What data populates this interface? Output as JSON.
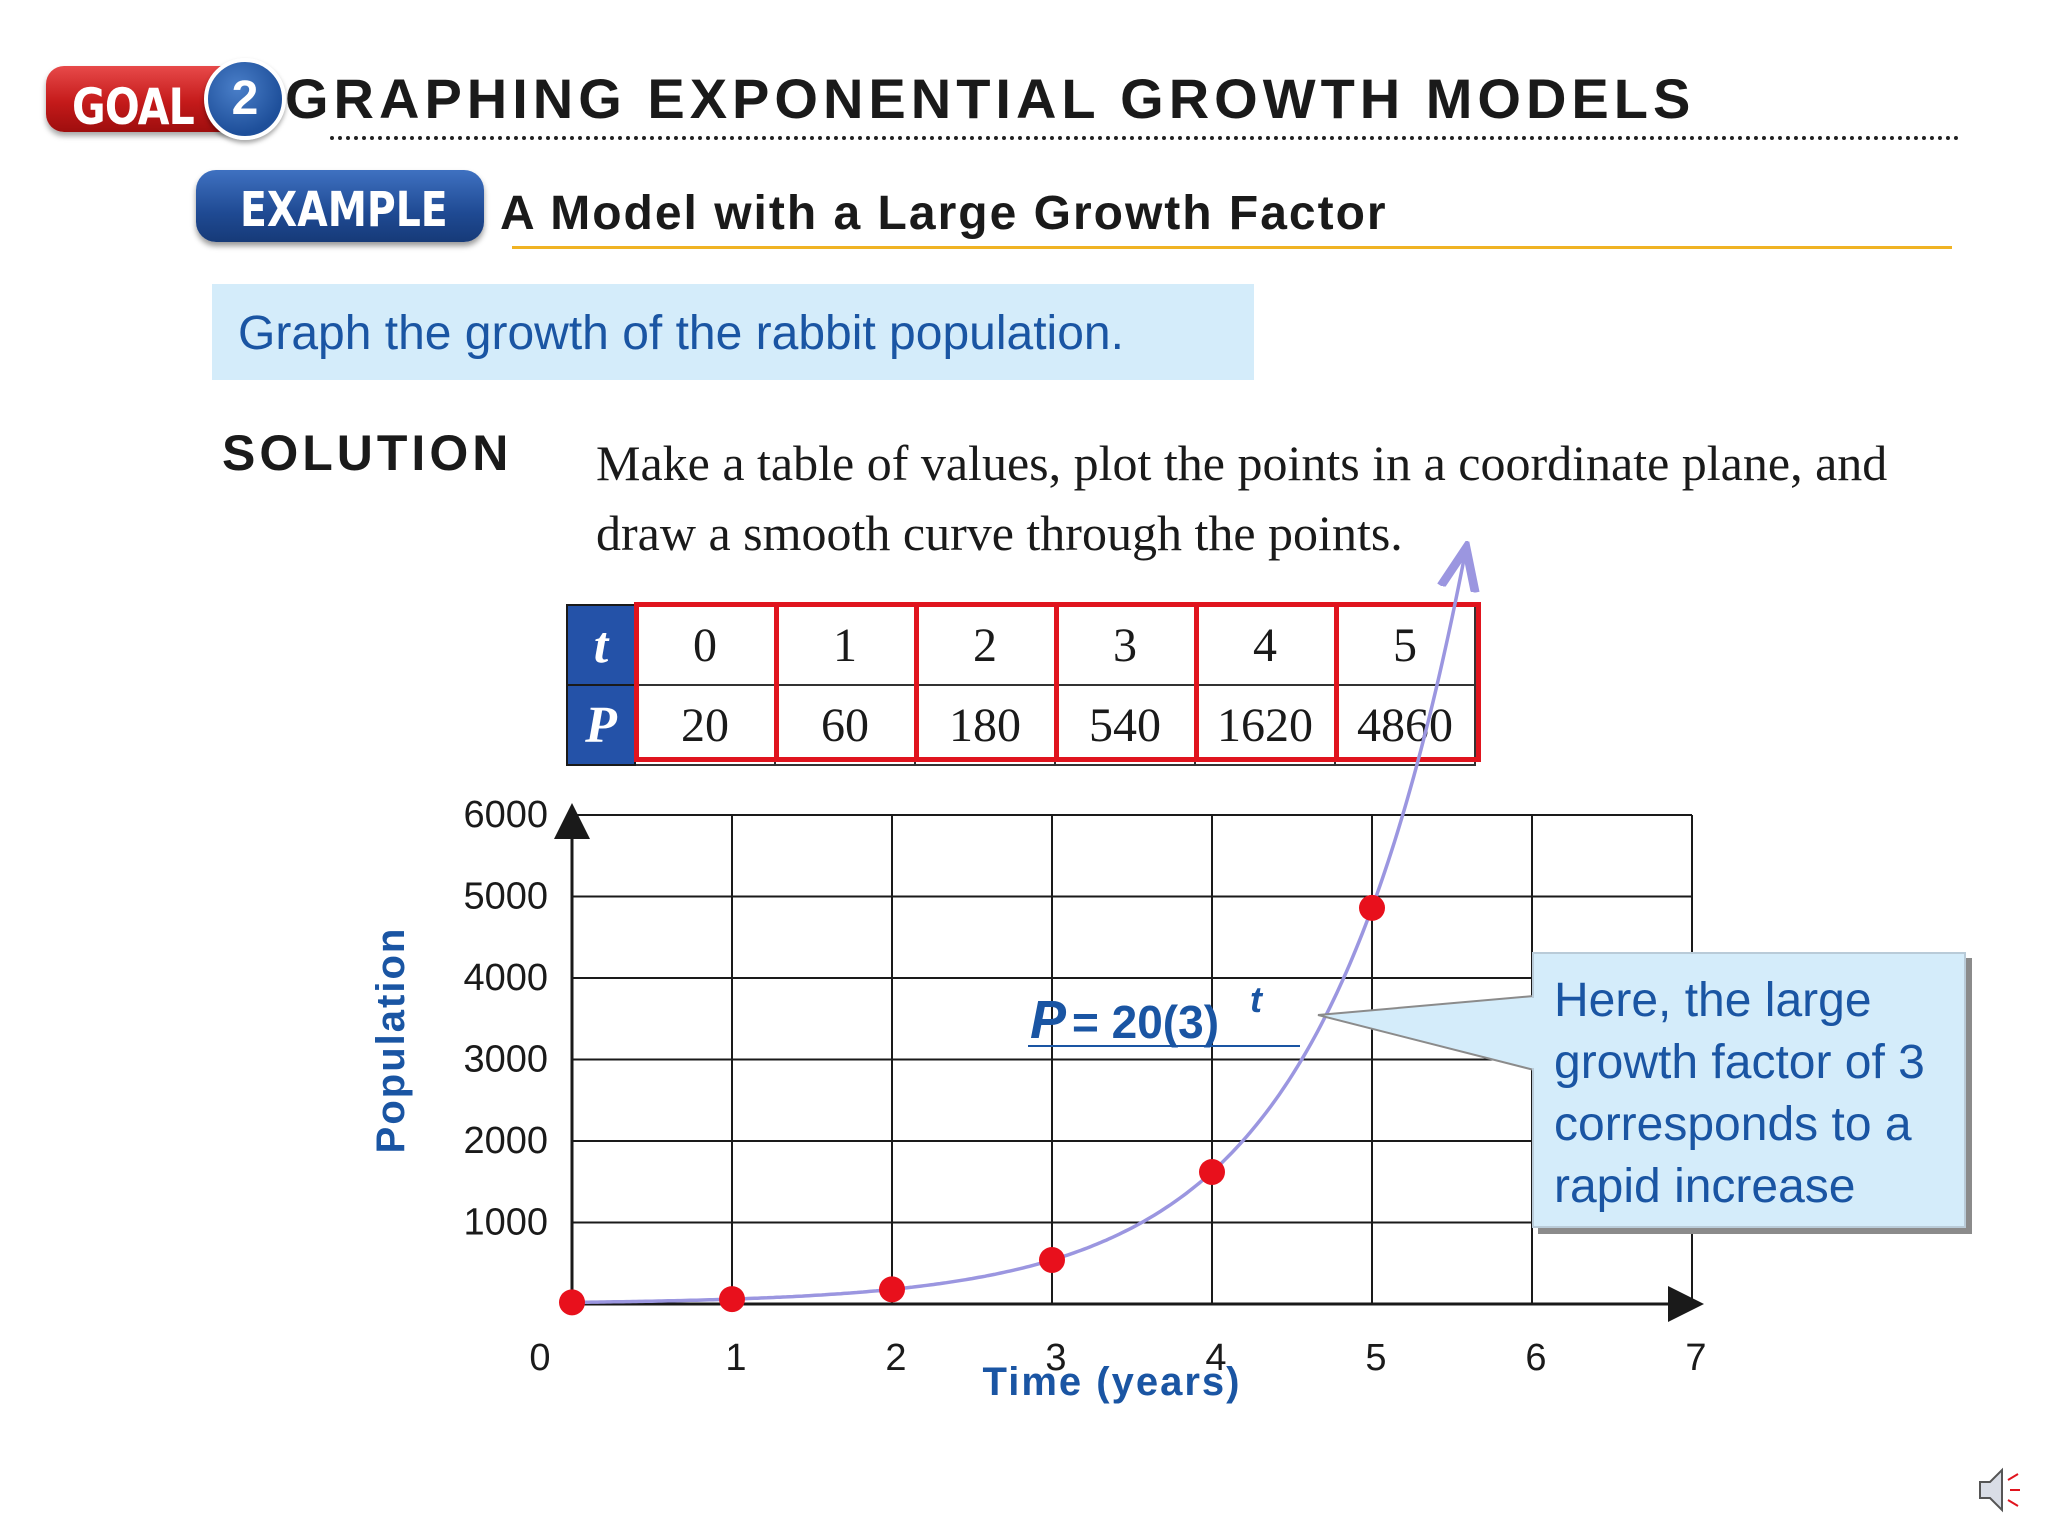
{
  "header": {
    "goal_label": "GOAL",
    "goal_number": "2",
    "title": "GRAPHING EXPONENTIAL GROWTH MODELS"
  },
  "example": {
    "badge": "EXAMPLE",
    "title": "A Model with a Large Growth Factor"
  },
  "prompt": "Graph the growth of the rabbit population.",
  "solution": {
    "label": "SOLUTION",
    "text": "Make a table of values, plot the points in a coordinate plane, and draw a smooth curve through the points."
  },
  "table": {
    "row1_label": "t",
    "row2_label": "P",
    "t": [
      "0",
      "1",
      "2",
      "3",
      "4",
      "5"
    ],
    "P": [
      "20",
      "60",
      "180",
      "540",
      "1620",
      "4860"
    ]
  },
  "chart_data": {
    "type": "scatter",
    "x": [
      0,
      1,
      2,
      3,
      4,
      5
    ],
    "values": [
      20,
      60,
      180,
      540,
      1620,
      4860
    ],
    "xlabel": "Time (years)",
    "ylabel": "Population",
    "xlim": [
      0,
      7
    ],
    "ylim": [
      0,
      6000
    ],
    "x_ticks": [
      "0",
      "1",
      "2",
      "3",
      "4",
      "5",
      "6",
      "7"
    ],
    "y_ticks": [
      "1000",
      "2000",
      "3000",
      "4000",
      "5000",
      "6000"
    ],
    "curve": {
      "formula_lhs": "P",
      "formula_rhs": "= 20(3)",
      "exponent": "t",
      "color": "#9b96e0"
    },
    "point_color": "#e8101c",
    "grid": true
  },
  "callout": {
    "text": "Here, the large growth factor of 3 corresponds to a rapid increase"
  },
  "colors": {
    "accent_blue": "#1a55a3",
    "highlight_box": "#d4ecfa",
    "goal_red": "#c41a1a",
    "example_blue": "#1f4a93",
    "rule_gold": "#f0b323"
  }
}
